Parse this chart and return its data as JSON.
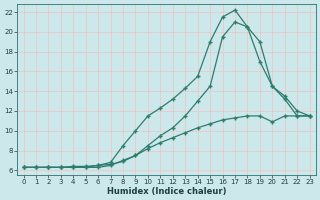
{
  "background_color": "#cce8eb",
  "grid_color": "#e8c8c8",
  "line_color": "#2d7d6e",
  "xlabel": "Humidex (Indice chaleur)",
  "xlim": [
    -0.5,
    23.5
  ],
  "ylim": [
    5.5,
    22.8
  ],
  "xticks": [
    0,
    1,
    2,
    3,
    4,
    5,
    6,
    7,
    8,
    9,
    10,
    11,
    12,
    13,
    14,
    15,
    16,
    17,
    18,
    19,
    20,
    21,
    22,
    23
  ],
  "yticks": [
    6,
    8,
    10,
    12,
    14,
    16,
    18,
    20,
    22
  ],
  "line1_x": [
    0,
    1,
    2,
    3,
    4,
    5,
    6,
    7,
    8,
    9,
    10,
    11,
    12,
    13,
    14,
    15,
    16,
    17,
    18,
    19,
    20,
    21,
    22,
    23
  ],
  "line1_y": [
    6.3,
    6.3,
    6.3,
    6.3,
    6.4,
    6.4,
    6.5,
    6.6,
    6.9,
    7.5,
    8.2,
    8.8,
    9.3,
    9.8,
    10.3,
    10.7,
    11.1,
    11.3,
    11.5,
    11.5,
    10.9,
    11.5,
    11.5,
    11.5
  ],
  "line2_x": [
    0,
    1,
    2,
    3,
    4,
    5,
    6,
    7,
    8,
    9,
    10,
    11,
    12,
    13,
    14,
    15,
    16,
    17,
    18,
    19,
    20,
    21,
    22,
    23
  ],
  "line2_y": [
    6.3,
    6.3,
    6.3,
    6.3,
    6.3,
    6.3,
    6.5,
    6.8,
    8.5,
    10.0,
    11.5,
    12.3,
    13.2,
    14.3,
    15.5,
    19.0,
    21.5,
    22.2,
    20.5,
    17.0,
    14.5,
    13.2,
    11.5,
    11.5
  ],
  "line3_x": [
    0,
    1,
    2,
    3,
    4,
    5,
    6,
    7,
    8,
    9,
    10,
    11,
    12,
    13,
    14,
    15,
    16,
    17,
    18,
    19,
    20,
    21,
    22,
    23
  ],
  "line3_y": [
    6.3,
    6.3,
    6.3,
    6.3,
    6.3,
    6.3,
    6.3,
    6.5,
    7.0,
    7.5,
    8.5,
    9.5,
    10.3,
    11.5,
    13.0,
    14.5,
    19.5,
    21.0,
    20.5,
    19.0,
    14.5,
    13.5,
    12.0,
    11.5
  ]
}
